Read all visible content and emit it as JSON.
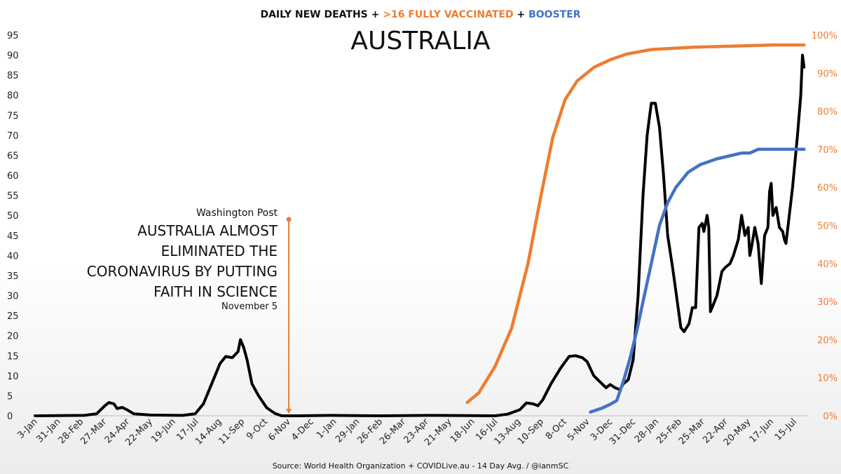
{
  "chart_data": {
    "type": "line",
    "title": "AUSTRALIA",
    "subtitle_parts": [
      {
        "text": "DAILY NEW DEATHS + ",
        "color": "#111111"
      },
      {
        "text": ">16 FULLY VACCINATED",
        "color": "#ed7d31"
      },
      {
        "text": " + ",
        "color": "#111111"
      },
      {
        "text": "BOOSTER",
        "color": "#4472c4"
      }
    ],
    "source": "Source: World Health Organization + COVIDLive.au - 14 Day Avg. / @ianmSC",
    "y_left": {
      "min": 0,
      "max": 95,
      "ticks": [
        0,
        5,
        10,
        15,
        20,
        25,
        30,
        35,
        40,
        45,
        50,
        55,
        60,
        65,
        70,
        75,
        80,
        85,
        90,
        95
      ]
    },
    "y_right": {
      "min": 0,
      "max": 100,
      "ticks": [
        "0%",
        "10%",
        "20%",
        "30%",
        "40%",
        "50%",
        "60%",
        "70%",
        "80%",
        "90%",
        "100%"
      ]
    },
    "x_range": [
      0,
      940
    ],
    "x_ticks": [
      {
        "day": 0,
        "label": "3-Jan"
      },
      {
        "day": 28,
        "label": "31-Jan"
      },
      {
        "day": 56,
        "label": "28-Feb"
      },
      {
        "day": 84,
        "label": "27-Mar"
      },
      {
        "day": 112,
        "label": "24-Apr"
      },
      {
        "day": 140,
        "label": "22-May"
      },
      {
        "day": 168,
        "label": "19-Jun"
      },
      {
        "day": 196,
        "label": "17-Jul"
      },
      {
        "day": 224,
        "label": "14-Aug"
      },
      {
        "day": 252,
        "label": "11-Sep"
      },
      {
        "day": 280,
        "label": "9-Oct"
      },
      {
        "day": 308,
        "label": "6-Nov"
      },
      {
        "day": 336,
        "label": "4-Dec"
      },
      {
        "day": 364,
        "label": "1-Jan"
      },
      {
        "day": 392,
        "label": "29-Jan"
      },
      {
        "day": 420,
        "label": "26-Feb"
      },
      {
        "day": 448,
        "label": "26-Mar"
      },
      {
        "day": 476,
        "label": "23-Apr"
      },
      {
        "day": 504,
        "label": "21-May"
      },
      {
        "day": 532,
        "label": "18-Jun"
      },
      {
        "day": 560,
        "label": "16-Jul"
      },
      {
        "day": 588,
        "label": "13-Aug"
      },
      {
        "day": 616,
        "label": "10-Sep"
      },
      {
        "day": 644,
        "label": "8-Oct"
      },
      {
        "day": 672,
        "label": "5-Nov"
      },
      {
        "day": 700,
        "label": "3-Dec"
      },
      {
        "day": 728,
        "label": "31-Dec"
      },
      {
        "day": 756,
        "label": "28-Jan"
      },
      {
        "day": 784,
        "label": "25-Feb"
      },
      {
        "day": 812,
        "label": "25-Mar"
      },
      {
        "day": 840,
        "label": "22-Apr"
      },
      {
        "day": 868,
        "label": "20-May"
      },
      {
        "day": 896,
        "label": "17-Jun"
      },
      {
        "day": 924,
        "label": "15-Jul"
      }
    ],
    "series": [
      {
        "name": "Daily new deaths (14 day avg.)",
        "axis": "left",
        "color": "#000000",
        "points": [
          [
            0,
            0
          ],
          [
            60,
            0.1
          ],
          [
            75,
            0.5
          ],
          [
            85,
            2.5
          ],
          [
            90,
            3.3
          ],
          [
            96,
            3
          ],
          [
            100,
            1.8
          ],
          [
            106,
            2.1
          ],
          [
            112,
            1.5
          ],
          [
            120,
            0.5
          ],
          [
            140,
            0.2
          ],
          [
            180,
            0.1
          ],
          [
            195,
            0.5
          ],
          [
            205,
            3
          ],
          [
            215,
            8
          ],
          [
            225,
            13
          ],
          [
            232,
            14.8
          ],
          [
            240,
            14.5
          ],
          [
            247,
            16
          ],
          [
            250,
            19
          ],
          [
            254,
            17
          ],
          [
            258,
            14
          ],
          [
            264,
            8
          ],
          [
            272,
            5
          ],
          [
            282,
            2
          ],
          [
            292,
            0.6
          ],
          [
            300,
            0
          ],
          [
            320,
            0
          ],
          [
            360,
            0.1
          ],
          [
            420,
            0
          ],
          [
            480,
            0.1
          ],
          [
            560,
            0
          ],
          [
            575,
            0.4
          ],
          [
            590,
            1.5
          ],
          [
            598,
            3.2
          ],
          [
            606,
            3
          ],
          [
            612,
            2.5
          ],
          [
            618,
            4
          ],
          [
            628,
            8
          ],
          [
            640,
            12
          ],
          [
            650,
            14.8
          ],
          [
            658,
            15
          ],
          [
            666,
            14.5
          ],
          [
            672,
            13.5
          ],
          [
            680,
            10
          ],
          [
            690,
            8
          ],
          [
            695,
            7
          ],
          [
            700,
            7.8
          ],
          [
            706,
            7
          ],
          [
            712,
            6.5
          ],
          [
            716,
            8
          ],
          [
            722,
            9
          ],
          [
            728,
            14
          ],
          [
            734,
            30
          ],
          [
            740,
            55
          ],
          [
            745,
            70
          ],
          [
            750,
            78
          ],
          [
            755,
            78
          ],
          [
            760,
            72
          ],
          [
            765,
            60
          ],
          [
            770,
            45
          ],
          [
            776,
            37
          ],
          [
            782,
            28
          ],
          [
            786,
            22
          ],
          [
            790,
            21
          ],
          [
            796,
            23
          ],
          [
            800,
            27
          ],
          [
            804,
            27
          ],
          [
            808,
            47
          ],
          [
            812,
            48
          ],
          [
            814,
            46
          ],
          [
            818,
            50
          ],
          [
            820,
            47
          ],
          [
            822,
            26
          ],
          [
            826,
            28
          ],
          [
            830,
            30
          ],
          [
            836,
            36
          ],
          [
            840,
            37
          ],
          [
            846,
            38
          ],
          [
            850,
            40
          ],
          [
            856,
            44
          ],
          [
            860,
            50
          ],
          [
            864,
            45
          ],
          [
            868,
            47
          ],
          [
            870,
            40
          ],
          [
            872,
            42
          ],
          [
            876,
            47
          ],
          [
            880,
            43
          ],
          [
            884,
            33
          ],
          [
            888,
            45
          ],
          [
            892,
            47
          ],
          [
            894,
            56
          ],
          [
            896,
            58
          ],
          [
            898,
            50
          ],
          [
            902,
            52
          ],
          [
            906,
            47
          ],
          [
            910,
            46
          ],
          [
            912,
            44
          ],
          [
            914,
            43
          ],
          [
            918,
            50
          ],
          [
            922,
            57
          ],
          [
            928,
            70
          ],
          [
            932,
            80
          ],
          [
            934,
            90
          ],
          [
            936,
            87
          ]
        ]
      },
      {
        "name": ">16 fully vaccinated",
        "axis": "right",
        "color": "#ed7d31",
        "points": [
          [
            526,
            3.5
          ],
          [
            540,
            6
          ],
          [
            560,
            13
          ],
          [
            580,
            23
          ],
          [
            600,
            40
          ],
          [
            615,
            57
          ],
          [
            630,
            73
          ],
          [
            645,
            83
          ],
          [
            660,
            88
          ],
          [
            680,
            91.5
          ],
          [
            700,
            93.5
          ],
          [
            720,
            95
          ],
          [
            750,
            96.2
          ],
          [
            800,
            96.8
          ],
          [
            850,
            97.1
          ],
          [
            900,
            97.4
          ],
          [
            936,
            97.4
          ]
        ]
      },
      {
        "name": "Booster",
        "axis": "right",
        "color": "#4472c4",
        "points": [
          [
            676,
            1
          ],
          [
            690,
            2
          ],
          [
            700,
            3
          ],
          [
            708,
            4
          ],
          [
            716,
            9
          ],
          [
            724,
            15
          ],
          [
            732,
            22
          ],
          [
            740,
            30
          ],
          [
            750,
            40
          ],
          [
            760,
            50
          ],
          [
            770,
            56
          ],
          [
            780,
            60
          ],
          [
            795,
            64
          ],
          [
            810,
            66
          ],
          [
            830,
            67.5
          ],
          [
            850,
            68.5
          ],
          [
            860,
            69
          ],
          [
            870,
            69
          ],
          [
            880,
            70
          ],
          [
            900,
            70
          ],
          [
            936,
            70
          ]
        ]
      }
    ],
    "annotation": {
      "source_label": "Washington Post",
      "headline": [
        "AUSTRALIA ALMOST",
        "ELIMINATED THE",
        "CORONAVIRUS BY PUTTING",
        "FAITH IN SCIENCE"
      ],
      "date": "November 5",
      "day": 308,
      "y_top": 49,
      "color": "#ed7d31"
    },
    "legend": "title"
  }
}
